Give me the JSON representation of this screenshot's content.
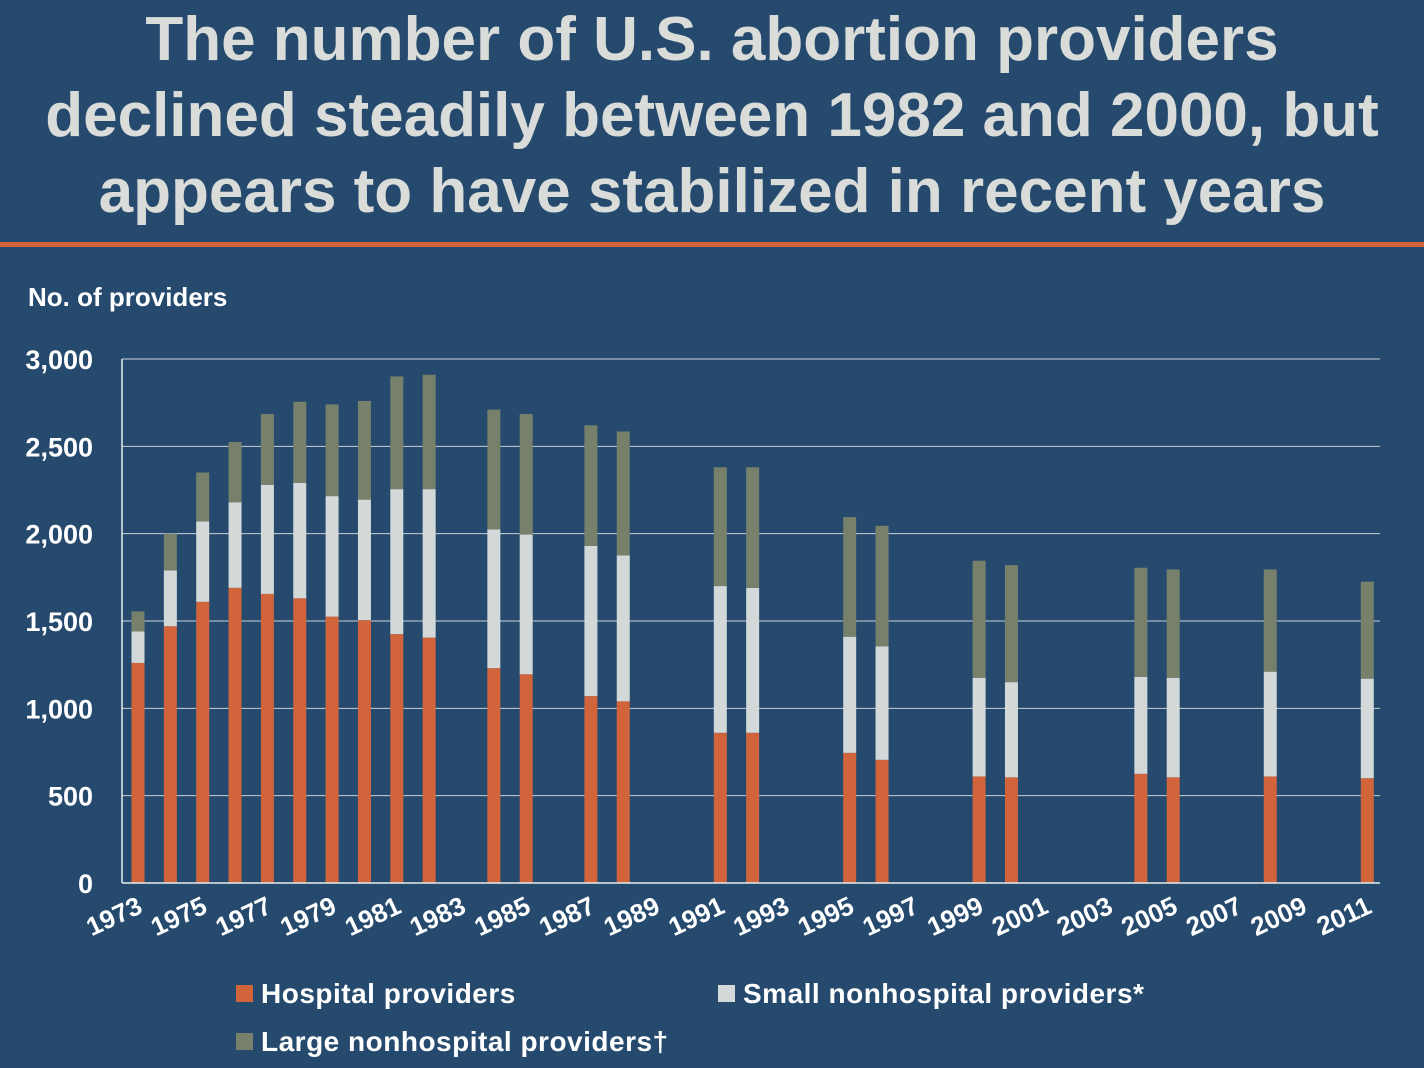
{
  "title": {
    "line1": "The number of U.S. abortion providers",
    "line2": "declined steadily between 1982 and 2000, but",
    "line3": "appears to have stabilized in recent years"
  },
  "colors": {
    "background": "#254a6e",
    "accent_rule": "#d2643c",
    "hospital": "#d2643c",
    "small": "#d3d9d8",
    "large": "#77806a",
    "grid": "#c9d0d4"
  },
  "chart_data": {
    "type": "bar",
    "stacked": true,
    "ylabel": "No. of providers",
    "ylim": [
      0,
      3000
    ],
    "yticks": [
      0,
      500,
      1000,
      1500,
      2000,
      2500,
      3000
    ],
    "ytick_labels": [
      "0",
      "500",
      "1,000",
      "1,500",
      "2,000",
      "2,500",
      "3,000"
    ],
    "xtick_labels": [
      "1973",
      "1975",
      "1977",
      "1979",
      "1981",
      "1983",
      "1985",
      "1987",
      "1989",
      "1991",
      "1993",
      "1995",
      "1997",
      "1999",
      "2001",
      "2003",
      "2005",
      "2007",
      "2009",
      "2011"
    ],
    "x_range": [
      1973,
      2012
    ],
    "categories": [
      1973,
      1974,
      1975,
      1976,
      1977,
      1978,
      1979,
      1980,
      1981,
      1982,
      1984,
      1985,
      1987,
      1988,
      1991,
      1992,
      1995,
      1996,
      1999,
      2000,
      2004,
      2005,
      2008,
      2011
    ],
    "grid": true,
    "legend_position": "bottom",
    "series": [
      {
        "name": "Hospital providers",
        "values": [
          1260,
          1470,
          1610,
          1690,
          1655,
          1630,
          1525,
          1505,
          1425,
          1405,
          1230,
          1195,
          1070,
          1040,
          860,
          860,
          745,
          705,
          610,
          605,
          625,
          605,
          610,
          600
        ]
      },
      {
        "name": "Small nonhospital providers*",
        "values": [
          180,
          320,
          460,
          490,
          625,
          660,
          690,
          690,
          830,
          850,
          795,
          800,
          860,
          835,
          840,
          830,
          665,
          650,
          565,
          545,
          555,
          570,
          600,
          570
        ]
      },
      {
        "name": "Large nonhospital providers†",
        "values": [
          115,
          210,
          280,
          345,
          405,
          465,
          525,
          565,
          645,
          655,
          685,
          690,
          690,
          710,
          680,
          690,
          685,
          690,
          670,
          670,
          625,
          620,
          585,
          555
        ]
      }
    ]
  }
}
